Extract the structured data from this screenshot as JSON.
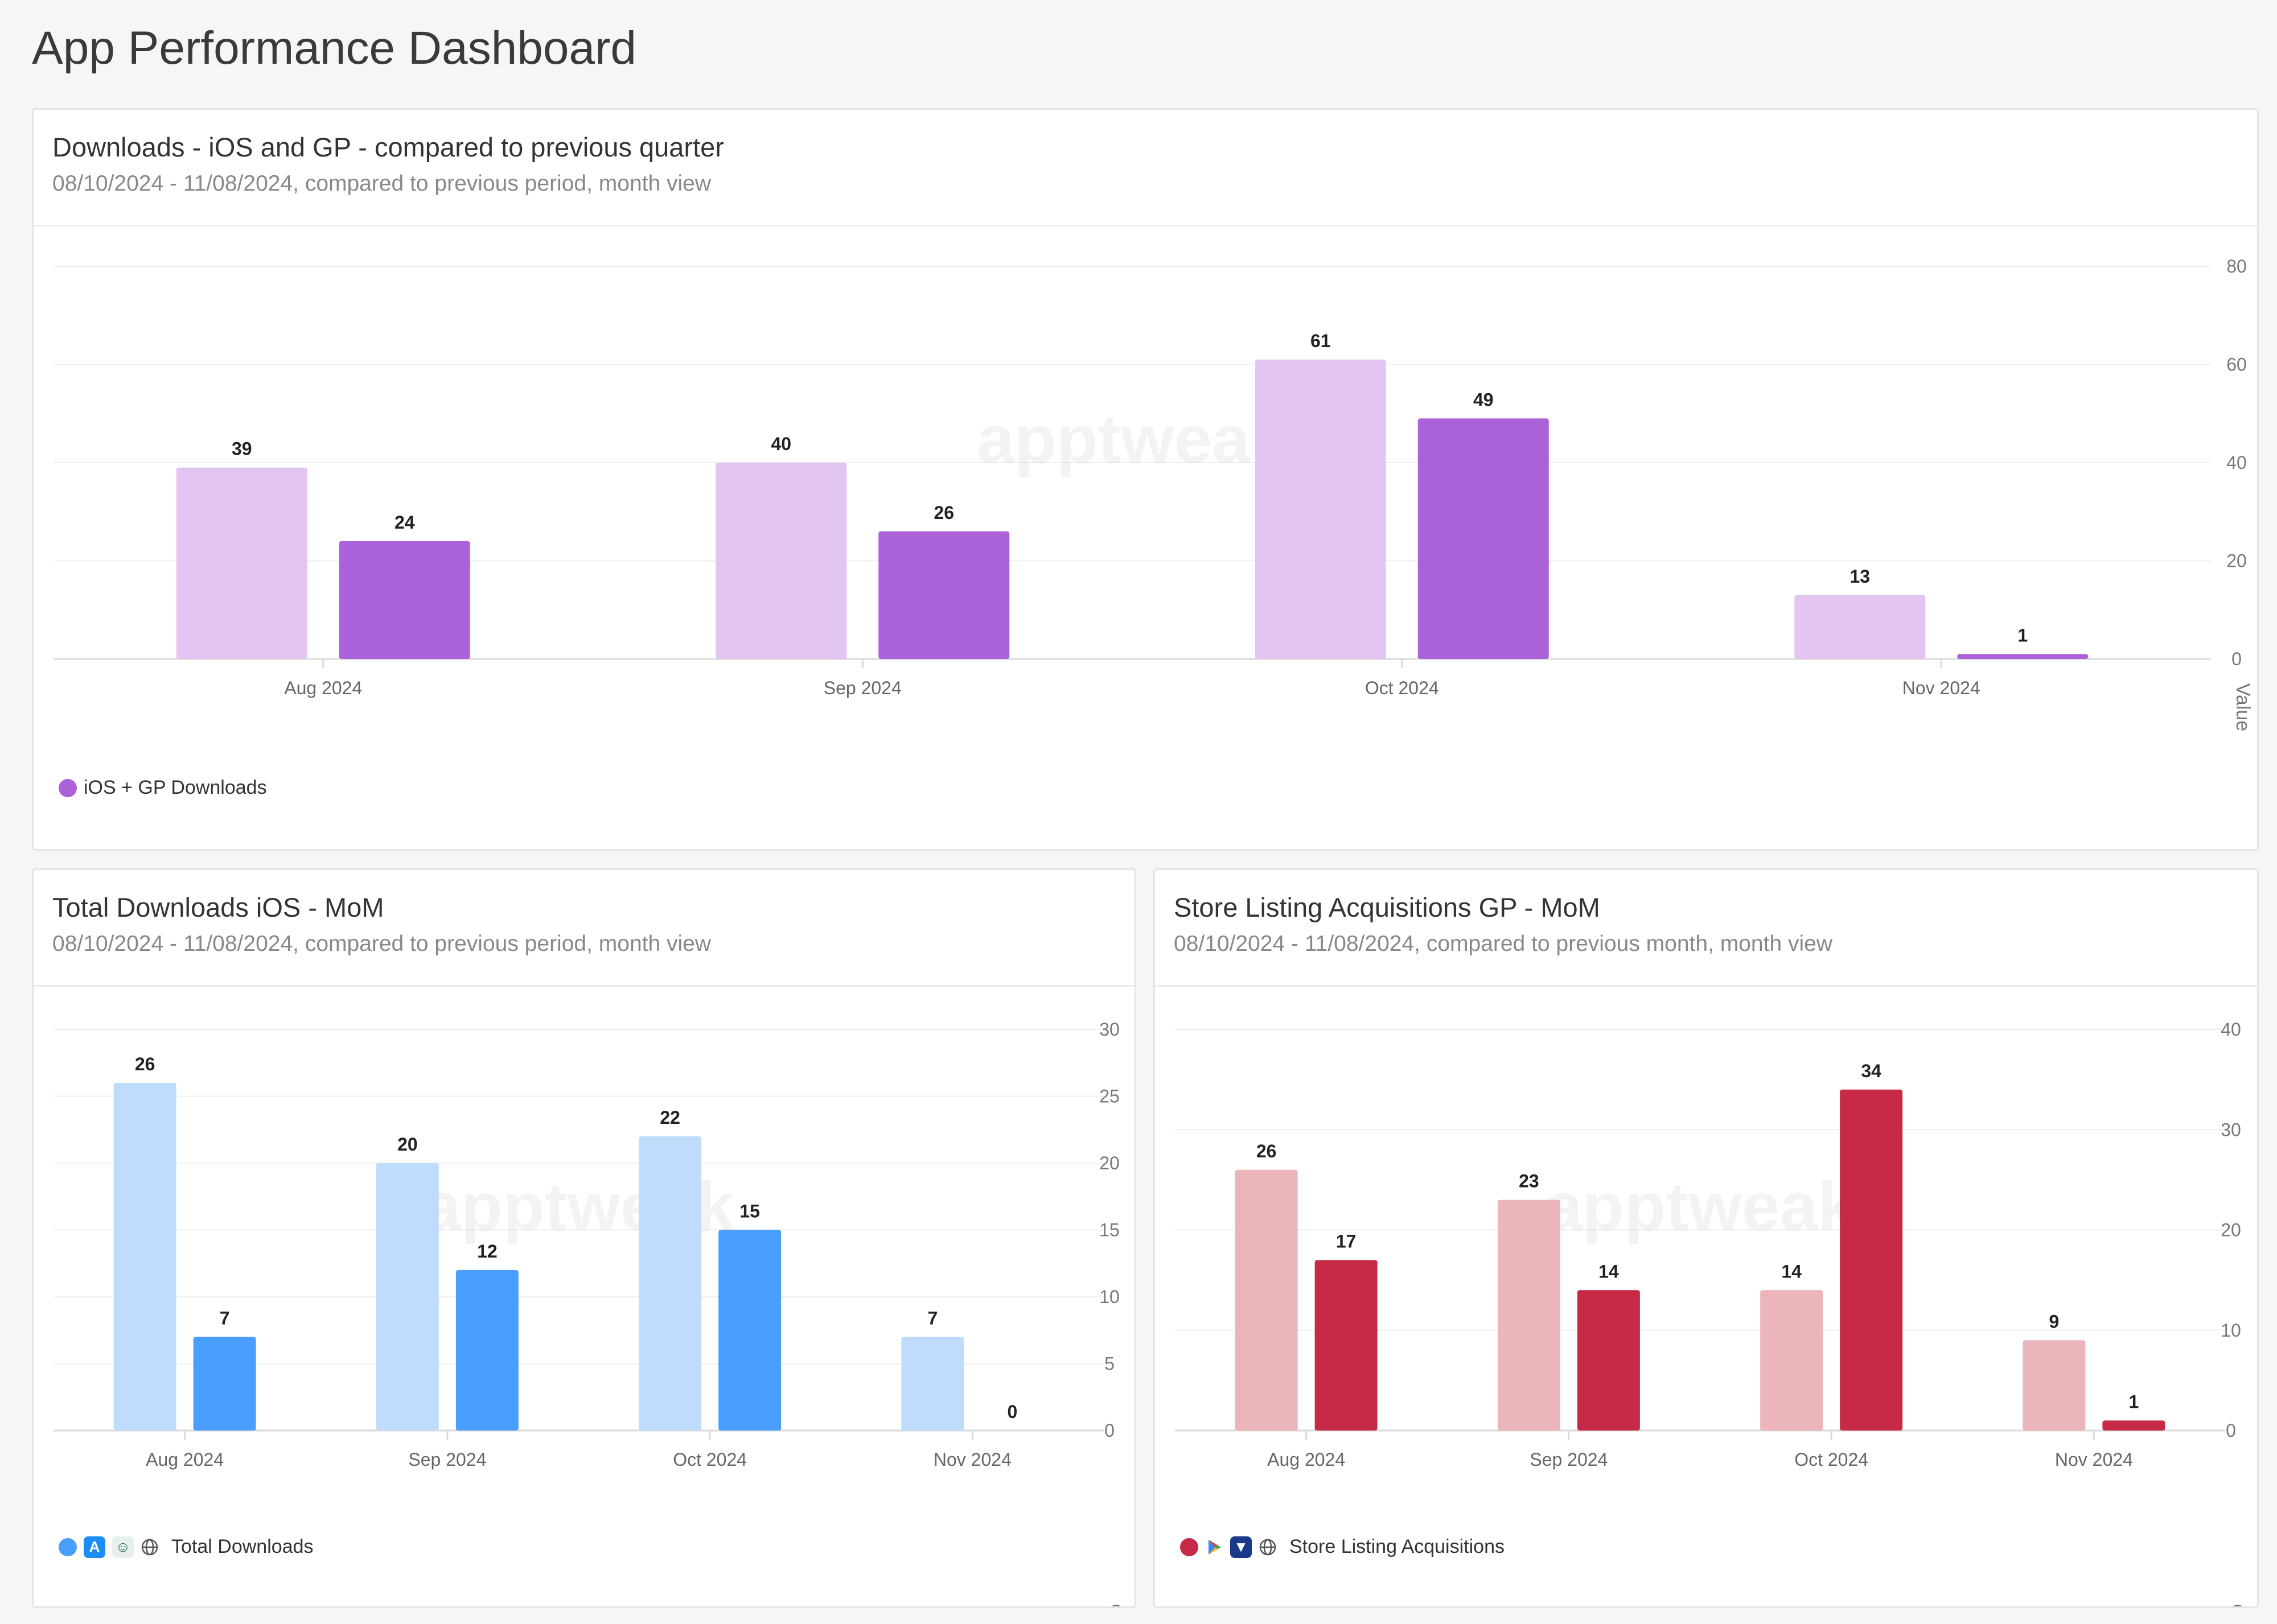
{
  "page": {
    "title": "App Performance Dashboard"
  },
  "watermark": "apptweak",
  "charts": [
    {
      "title": "Downloads - iOS and GP - compared to previous quarter",
      "subtitle": "08/10/2024 - 11/08/2024, compared to previous period, month view",
      "legend_label": "iOS + GP Downloads",
      "colors": {
        "previous": "#e2c6f1",
        "current": "#ab61d8"
      }
    },
    {
      "title": "Total Downloads iOS - MoM",
      "subtitle": "08/10/2024 - 11/08/2024, compared to previous period, month view",
      "legend_label": "Total Downloads",
      "colors": {
        "previous": "#c0dcfd",
        "current": "#4a9efd"
      }
    },
    {
      "title": "Store Listing Acquisitions GP - MoM",
      "subtitle": "08/10/2024 - 11/08/2024, compared to previous month, month view",
      "legend_label": "Store Listing Acquisitions",
      "colors": {
        "previous": "#ecb4bb",
        "current": "#c72a46"
      }
    }
  ],
  "chart_data": [
    {
      "type": "bar",
      "categories": [
        "Aug 2024",
        "Sep 2024",
        "Oct 2024",
        "Nov 2024"
      ],
      "series": [
        {
          "values": [
            39,
            40,
            61,
            13
          ]
        },
        {
          "name": "iOS + GP Downloads",
          "values": [
            24,
            26,
            49,
            1
          ]
        }
      ],
      "ylabel": "Value",
      "ylim": [
        0,
        80
      ],
      "yticks": [
        0,
        20,
        40,
        60,
        80
      ],
      "grid": true,
      "legend": "bottom-left"
    },
    {
      "type": "bar",
      "categories": [
        "Aug 2024",
        "Sep 2024",
        "Oct 2024",
        "Nov 2024"
      ],
      "series": [
        {
          "values": [
            26,
            20,
            22,
            7
          ]
        },
        {
          "name": "Total Downloads",
          "values": [
            7,
            12,
            15,
            0
          ]
        }
      ],
      "ylabel": "Count",
      "ylim": [
        0,
        30
      ],
      "yticks": [
        0,
        5,
        10,
        15,
        20,
        25,
        30
      ],
      "grid": true,
      "legend": "bottom-left"
    },
    {
      "type": "bar",
      "categories": [
        "Aug 2024",
        "Sep 2024",
        "Oct 2024",
        "Nov 2024"
      ],
      "series": [
        {
          "values": [
            26,
            23,
            14,
            9
          ]
        },
        {
          "name": "Store Listing Acquisitions",
          "values": [
            17,
            14,
            34,
            1
          ]
        }
      ],
      "ylabel": "Count",
      "ylim": [
        0,
        40
      ],
      "yticks": [
        0,
        10,
        20,
        30,
        40
      ],
      "grid": true,
      "legend": "bottom-left"
    }
  ]
}
